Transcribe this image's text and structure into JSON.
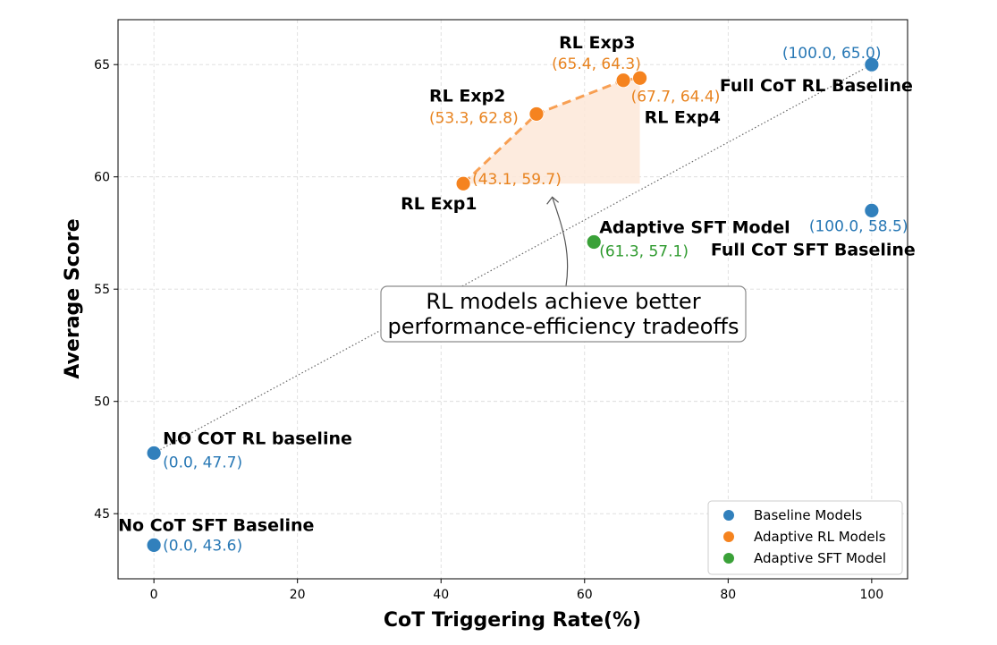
{
  "chart_data": {
    "type": "scatter",
    "xlabel": "CoT Triggering Rate(%)",
    "ylabel": "Average Score",
    "xlim": [
      -5,
      105
    ],
    "ylim": [
      42.1,
      67.0
    ],
    "xticks": [
      0,
      20,
      40,
      60,
      80,
      100
    ],
    "yticks": [
      45,
      50,
      55,
      60,
      65
    ],
    "grid": true,
    "legend_position": "bottom-right",
    "colors": {
      "baseline": "#3180bc",
      "rl": "#f5831f",
      "sft": "#3aa138",
      "name_text": "#000000",
      "baseline_coord": "#2878b5",
      "rl_coord": "#e8831f",
      "sft_coord": "#2e9a2e",
      "fill": "#fde8d8",
      "grid": "#d9d9d9",
      "trend": "#666666"
    },
    "points": [
      {
        "name": "NO COT RL baseline",
        "coord": "(0.0, 47.7)",
        "x": 0.0,
        "y": 47.7,
        "group": "baseline"
      },
      {
        "name": "No CoT SFT Baseline",
        "coord": "(0.0, 43.6)",
        "x": 0.0,
        "y": 43.6,
        "group": "baseline"
      },
      {
        "name": "Full CoT RL Baseline",
        "coord": "(100.0, 65.0)",
        "x": 100.0,
        "y": 65.0,
        "group": "baseline"
      },
      {
        "name": "Full CoT SFT Baseline",
        "coord": "(100.0, 58.5)",
        "x": 100.0,
        "y": 58.5,
        "group": "baseline"
      },
      {
        "name": "RL Exp1",
        "coord": "(43.1, 59.7)",
        "x": 43.1,
        "y": 59.7,
        "group": "rl"
      },
      {
        "name": "RL Exp2",
        "coord": "(53.3, 62.8)",
        "x": 53.3,
        "y": 62.8,
        "group": "rl"
      },
      {
        "name": "RL Exp3",
        "coord": "(65.4, 64.3)",
        "x": 65.4,
        "y": 64.3,
        "group": "rl"
      },
      {
        "name": "RL Exp4",
        "coord": "(67.7, 64.4)",
        "x": 67.7,
        "y": 64.4,
        "group": "rl"
      },
      {
        "name": "Adaptive SFT Model",
        "coord": "(61.3, 57.1)",
        "x": 61.3,
        "y": 57.1,
        "group": "sft"
      }
    ],
    "rl_frontier_order": [
      "RL Exp1",
      "RL Exp2",
      "RL Exp3",
      "RL Exp4"
    ],
    "trend_line": {
      "from": [
        0.0,
        47.7
      ],
      "to": [
        100.0,
        65.0
      ]
    },
    "legend": [
      {
        "label": "Baseline Models",
        "group": "baseline"
      },
      {
        "label": "Adaptive RL Models",
        "group": "rl"
      },
      {
        "label": "Adaptive SFT Model",
        "group": "sft"
      }
    ],
    "annotation": {
      "lines": [
        "RL models achieve better",
        "performance-efficiency tradeoffs"
      ],
      "arrow_to": [
        55.5,
        59.1
      ]
    }
  }
}
